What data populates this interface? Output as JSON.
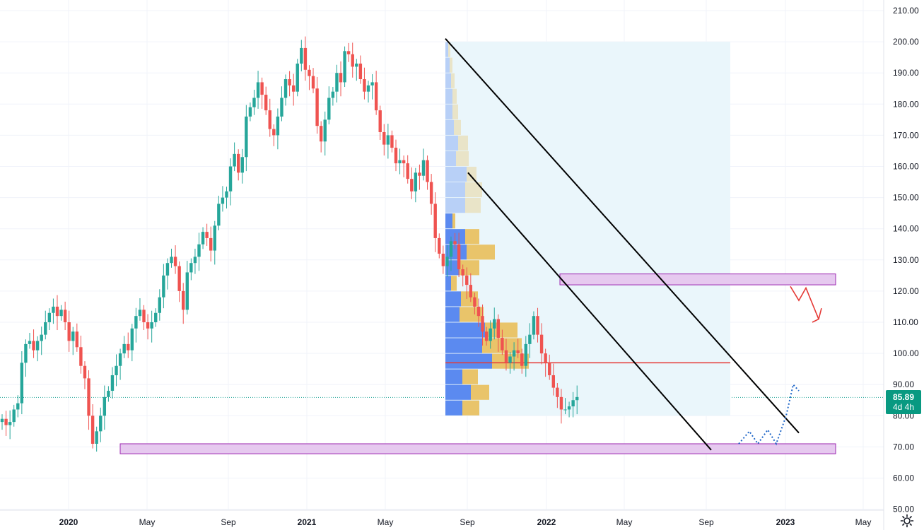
{
  "chart_data": {
    "type": "candlestick",
    "y_axis": {
      "ticks": [
        "210.00",
        "200.00",
        "190.00",
        "180.00",
        "170.00",
        "160.00",
        "150.00",
        "140.00",
        "130.00",
        "120.00",
        "110.00",
        "100.00",
        "90.00",
        "80.00",
        "70.00",
        "60.00",
        "50.00"
      ],
      "ylim": [
        50,
        210
      ],
      "position": "right"
    },
    "x_axis": {
      "ticks": [
        {
          "label": "2020",
          "bold": true
        },
        {
          "label": "May",
          "bold": false
        },
        {
          "label": "Sep",
          "bold": false
        },
        {
          "label": "2021",
          "bold": true
        },
        {
          "label": "May",
          "bold": false
        },
        {
          "label": "Sep",
          "bold": false
        },
        {
          "label": "2022",
          "bold": true
        },
        {
          "label": "May",
          "bold": false
        },
        {
          "label": "Sep",
          "bold": false
        },
        {
          "label": "2023",
          "bold": true
        },
        {
          "label": "May",
          "bold": false
        }
      ]
    },
    "last_price": "85.89",
    "countdown": "4d 4h",
    "colors": {
      "up": "#26a69a",
      "down": "#ef5350",
      "zone_fill": "#e6c9ef",
      "zone_border": "#9c27b0",
      "channel": "#000000",
      "poc_line": "#e53935",
      "volume_up": "#5b8af0",
      "volume_down": "#e9c46a",
      "range_bg": "#eaf6fb",
      "projection": "#1e66c8",
      "arrow": "#e53935"
    },
    "grid": true,
    "legend": "none",
    "drawings": {
      "resistance_zone": {
        "from": 122,
        "to": 125.5
      },
      "support_zone": {
        "from": 67.8,
        "to": 71.0
      },
      "poc_level": 97,
      "channel_upper": "from Aug 2021 ~201 to Nov 2022 ~75",
      "channel_lower": "from Sep 2021 ~158 to Oct 2022 ~69",
      "volume_profile_range": {
        "from": 80,
        "to": 200
      }
    },
    "weekly_ohlc_note": "weekly candles Jan 2020 – Oct 2022, values approximated from axis",
    "closes": [
      79,
      77,
      78,
      82,
      84,
      97,
      103,
      104,
      101,
      104,
      106,
      110,
      113,
      115,
      112,
      114,
      110,
      104,
      107,
      102,
      96,
      92,
      80,
      71,
      75,
      80,
      86,
      88,
      93,
      96,
      100,
      103,
      101,
      108,
      112,
      114,
      110,
      108,
      110,
      113,
      118,
      125,
      129,
      131,
      128,
      120,
      114,
      126,
      129,
      131,
      135,
      139,
      137,
      133,
      141,
      148,
      150,
      152,
      160,
      164,
      158,
      163,
      176,
      179,
      182,
      187,
      183,
      178,
      172,
      170,
      176,
      182,
      188,
      186,
      184,
      193,
      198,
      191,
      189,
      185,
      173,
      168,
      175,
      182,
      184,
      190,
      187,
      197,
      196,
      192,
      193,
      188,
      184,
      186,
      187,
      178,
      171,
      167,
      170,
      166,
      161,
      162,
      161,
      156,
      152,
      158,
      157,
      162,
      155,
      148,
      137,
      132,
      128,
      131,
      136,
      135,
      127,
      125,
      122,
      118,
      115,
      112,
      107,
      104,
      108,
      111,
      105,
      101,
      97,
      99,
      101,
      100,
      96,
      103,
      106,
      112,
      106,
      100,
      97,
      93,
      89,
      86,
      82,
      82,
      83,
      85,
      86
    ]
  }
}
